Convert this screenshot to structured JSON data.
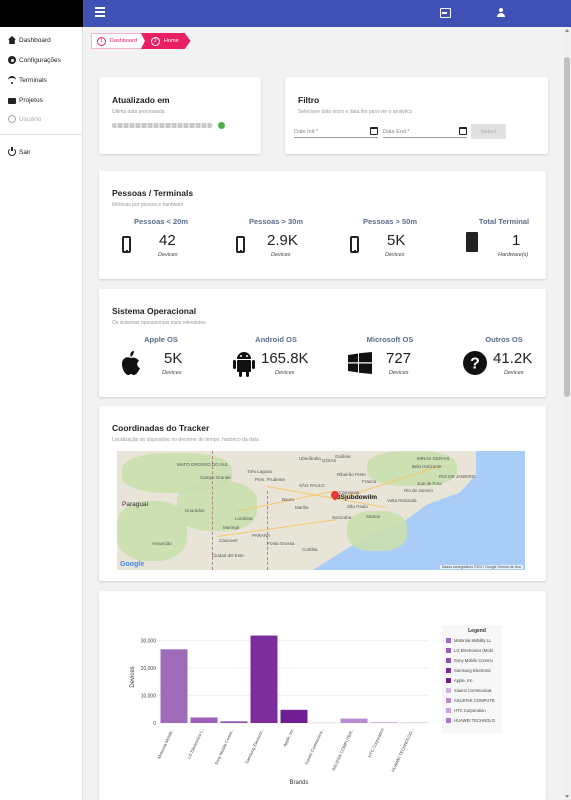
{
  "nav": {
    "items": [
      {
        "label": "Dashboard",
        "icon": "home-icon"
      },
      {
        "label": "Configurações",
        "icon": "gear-icon"
      },
      {
        "label": "Terminals",
        "icon": "wifi-icon"
      },
      {
        "label": "Projetos",
        "icon": "folder-icon"
      },
      {
        "label": "Usuário",
        "icon": "user-icon",
        "disabled": true
      }
    ],
    "logout": {
      "label": "Sair",
      "icon": "power-icon"
    }
  },
  "breadcrumb": [
    {
      "num": "1",
      "label": "Dashboard"
    },
    {
      "num": "2",
      "label": "Home"
    }
  ],
  "updated": {
    "title": "Atualizado em",
    "subtitle": "Última data processada"
  },
  "filter": {
    "title": "Filtro",
    "subtitle": "Selecione data início e data fim para ver o analytics",
    "start_placeholder": "Date Init *",
    "end_placeholder": "Data End *",
    "select_label": "Select"
  },
  "people": {
    "title": "Pessoas / Terminals",
    "subtitle": "Métricas por pessoa e hardware",
    "stats": [
      {
        "label": "Pessoas < 20m",
        "value": "42",
        "unit": "Devices",
        "icon": "phone-icon"
      },
      {
        "label": "Pessoas > 30m",
        "value": "2.9K",
        "unit": "Devices",
        "icon": "phone-icon"
      },
      {
        "label": "Pessoas > 50m",
        "value": "5K",
        "unit": "Devices",
        "icon": "phone-icon"
      },
      {
        "label": "Total Terminal",
        "value": "1",
        "unit": "Hardware(s)",
        "icon": "chip-icon"
      }
    ]
  },
  "os": {
    "title": "Sistema Operacional",
    "subtitle": "Os sistemas operacionais mais relevantes",
    "stats": [
      {
        "label": "Apple OS",
        "value": "5K",
        "unit": "Devices",
        "icon": "apple-icon"
      },
      {
        "label": "Android OS",
        "value": "165.8K",
        "unit": "Devices",
        "icon": "android-icon"
      },
      {
        "label": "Microsoft OS",
        "value": "727",
        "unit": "Devices",
        "icon": "windows-icon"
      },
      {
        "label": "Outros OS",
        "value": "41.2K",
        "unit": "Devices",
        "icon": "question-icon"
      }
    ]
  },
  "tracker": {
    "title": "Coordinadas do Tracker",
    "subtitle": "Localização do dispositivo no decorrer do tempo, histórico da data",
    "map": {
      "labels": [
        "MATO GROSSO DO SUL",
        "GOIÁS",
        "MINAS GERAIS",
        "SÃO PAULO",
        "RIO DE JANEIRO",
        "PARANÁ",
        "Paraguai",
        "Rio de Janeiro",
        "Campinas",
        "São Paulo",
        "Santos",
        "Sorocaba",
        "Bauru",
        "Londrina",
        "Maringá",
        "Curitiba",
        "Campo Grande",
        "Dourados",
        "Assunção",
        "Cascavel",
        "Uberlândia",
        "Ribeirão Preto",
        "Belo Horizonte",
        "Juiz de Fora",
        "Pres. Prudente",
        "Três Lagoas",
        "Franca",
        "Volta Redonda",
        "Ponta Grossa",
        "Ciudad del Este",
        "Marília",
        "Goiânia"
      ],
      "pin_label": "3Sjubdowilm",
      "google": "Google",
      "attribution": "Dados cartográficos ©2017 Google   Termos de Uso"
    }
  },
  "chart_data": {
    "type": "bar",
    "title": "",
    "xlabel": "Brands",
    "ylabel": "Devices",
    "ylim": [
      0,
      32000
    ],
    "yticks": [
      "0",
      "10,000",
      "20,000",
      "30,000"
    ],
    "categories": [
      "Motorola Mobilit...",
      "LG Electronics (...",
      "Sony Mobile Comm...",
      "Samsung Electroni...",
      "Apple, Inc.",
      "Xiaomi Communica...",
      "ASUSTek COMPUTER...",
      "HTC Corporation",
      "HUAWEI TECHNOLOG..."
    ],
    "values": [
      26800,
      2000,
      600,
      31800,
      4800,
      100,
      1600,
      300,
      100
    ],
    "colors": [
      "#9e6bb9",
      "#9b5fb6",
      "#8f52ae",
      "#7b2d9c",
      "#6f1f92",
      "#d1b3de",
      "#b98bcf",
      "#c9a4d9",
      "#ad7bc6"
    ],
    "legend_title": "Legend",
    "legend": [
      "Motorola Mobility LL",
      "LG Electronics (Mobi",
      "Sony Mobile Commu",
      "Samsung Electronic",
      "Apple, Inc.",
      "Xiaomi Communicat",
      "ASUSTeK COMPUTE",
      "HTC Corporation",
      "HUAWEI TECHNOLO"
    ],
    "legend_placement": "right",
    "grid": true
  }
}
